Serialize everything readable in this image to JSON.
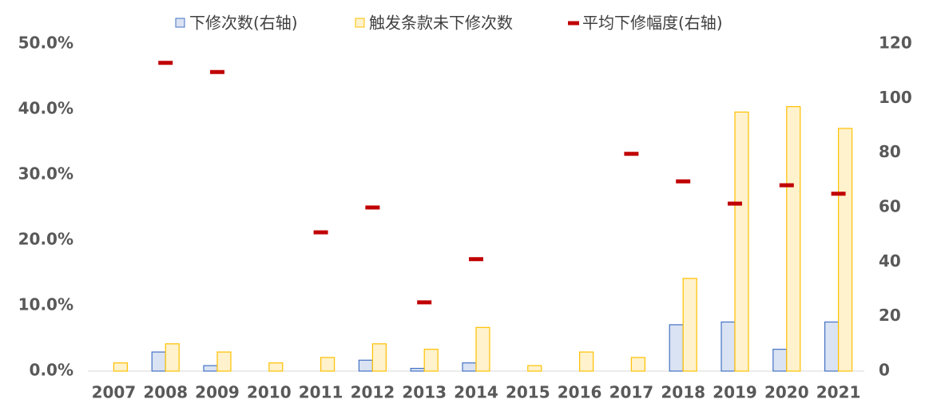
{
  "chart_data": {
    "type": "bar",
    "categories": [
      "2007",
      "2008",
      "2009",
      "2010",
      "2011",
      "2012",
      "2013",
      "2014",
      "2015",
      "2016",
      "2017",
      "2018",
      "2019",
      "2020",
      "2021"
    ],
    "series": [
      {
        "name": "下修次数(右轴)",
        "type": "bar",
        "axis": "y2",
        "color": "#dae3f3",
        "edge": "#4472c4",
        "values": [
          0,
          7,
          2,
          0,
          0,
          4,
          1,
          3,
          0,
          0,
          0,
          17,
          18,
          8,
          18
        ]
      },
      {
        "name": "触发条款未下修次数",
        "type": "bar",
        "axis": "y2",
        "color": "#fff2cc",
        "edge": "#ffc000",
        "values": [
          3,
          10,
          7,
          3,
          5,
          10,
          8,
          16,
          2,
          7,
          5,
          34,
          95,
          97,
          89
        ]
      },
      {
        "name": "平均下修幅度(右轴)",
        "type": "marker",
        "axis": "y",
        "color": "#c00000",
        "values": [
          null,
          47.1,
          45.7,
          null,
          21.2,
          25.0,
          10.5,
          17.1,
          null,
          null,
          33.2,
          29.0,
          25.6,
          28.4,
          27.1
        ]
      }
    ],
    "ylim": [
      0,
      50
    ],
    "yticks": [
      {
        "value": 0,
        "label": "0.0%"
      },
      {
        "value": 10,
        "label": "10.0%"
      },
      {
        "value": 20,
        "label": "20.0%"
      },
      {
        "value": 30,
        "label": "30.0%"
      },
      {
        "value": 40,
        "label": "40.0%"
      },
      {
        "value": 50,
        "label": "50.0%"
      }
    ],
    "y2lim": [
      0,
      120
    ],
    "y2ticks": [
      0,
      20,
      40,
      60,
      80,
      100,
      120
    ],
    "legend": "top"
  }
}
